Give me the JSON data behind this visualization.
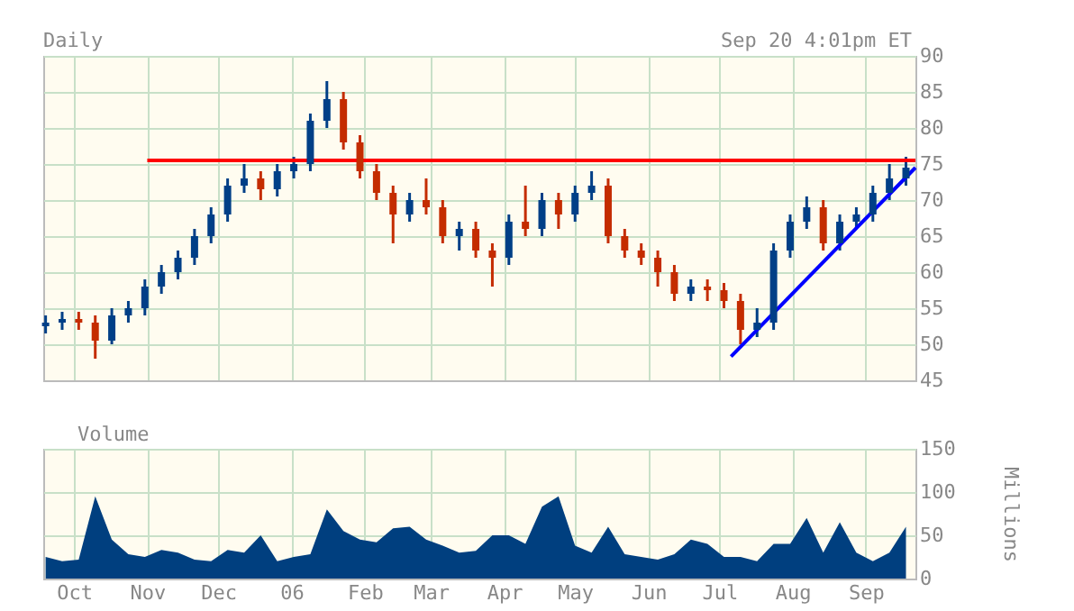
{
  "chart_data": [
    {
      "type": "candlestick",
      "title": "Daily",
      "annotations": [
        "Sep 20 4:01pm ET"
      ],
      "x": [
        "2005-09-19",
        "2005-09-26",
        "2005-10-03",
        "2005-10-10",
        "2005-10-17",
        "2005-10-24",
        "2005-10-31",
        "2005-11-07",
        "2005-11-14",
        "2005-11-21",
        "2005-11-28",
        "2005-12-05",
        "2005-12-12",
        "2005-12-19",
        "2005-12-26",
        "2006-01-02",
        "2006-01-09",
        "2006-01-16",
        "2006-01-23",
        "2006-01-30",
        "2006-02-06",
        "2006-02-13",
        "2006-02-20",
        "2006-02-27",
        "2006-03-06",
        "2006-03-13",
        "2006-03-20",
        "2006-03-27",
        "2006-04-03",
        "2006-04-10",
        "2006-04-17",
        "2006-04-24",
        "2006-05-01",
        "2006-05-08",
        "2006-05-15",
        "2006-05-22",
        "2006-05-29",
        "2006-06-05",
        "2006-06-12",
        "2006-06-19",
        "2006-06-26",
        "2006-07-03",
        "2006-07-10",
        "2006-07-17",
        "2006-07-24",
        "2006-07-31",
        "2006-08-07",
        "2006-08-14",
        "2006-08-21",
        "2006-08-28",
        "2006-09-04",
        "2006-09-11",
        "2006-09-18"
      ],
      "ohlc": [
        [
          52.5,
          54,
          51.5,
          53
        ],
        [
          53,
          54.5,
          52,
          53.5
        ],
        [
          53.5,
          54.5,
          52,
          53
        ],
        [
          53,
          54,
          48,
          50.5
        ],
        [
          50.5,
          55,
          50,
          54
        ],
        [
          54,
          56,
          53,
          55
        ],
        [
          55,
          59,
          54,
          58
        ],
        [
          58,
          61,
          57,
          60
        ],
        [
          60,
          63,
          59,
          62
        ],
        [
          62,
          66,
          61,
          65
        ],
        [
          65,
          69,
          64,
          68
        ],
        [
          68,
          73,
          67,
          72
        ],
        [
          72,
          75,
          71,
          73
        ],
        [
          73,
          74,
          70,
          71.5
        ],
        [
          71.5,
          75,
          70.5,
          74
        ],
        [
          74,
          76,
          73,
          75
        ],
        [
          75,
          82,
          74,
          81
        ],
        [
          81,
          86.5,
          80,
          84
        ],
        [
          84,
          85,
          77,
          78
        ],
        [
          78,
          79,
          73,
          74
        ],
        [
          74,
          75,
          70,
          71
        ],
        [
          71,
          72,
          64,
          68
        ],
        [
          68,
          71,
          67,
          70
        ],
        [
          70,
          73,
          68,
          69
        ],
        [
          69,
          70,
          64,
          65
        ],
        [
          65,
          67,
          63,
          66
        ],
        [
          66,
          67,
          62,
          63
        ],
        [
          63,
          64,
          58,
          62
        ],
        [
          62,
          68,
          61,
          67
        ],
        [
          67,
          72,
          65,
          66
        ],
        [
          66,
          71,
          65,
          70
        ],
        [
          70,
          71,
          66,
          68
        ],
        [
          68,
          72,
          67,
          71
        ],
        [
          71,
          74,
          70,
          72
        ],
        [
          72,
          73,
          64,
          65
        ],
        [
          65,
          66,
          62,
          63
        ],
        [
          63,
          64,
          61,
          62
        ],
        [
          62,
          63,
          58,
          60
        ],
        [
          60,
          61,
          56,
          57
        ],
        [
          57,
          59,
          56,
          58
        ],
        [
          58,
          59,
          56,
          57.5
        ],
        [
          57.5,
          58.5,
          55,
          56
        ],
        [
          56,
          57,
          50,
          52
        ],
        [
          52,
          55,
          51,
          53
        ],
        [
          53,
          64,
          52,
          63
        ],
        [
          63,
          68,
          62,
          67
        ],
        [
          67,
          70.5,
          66,
          69
        ],
        [
          69,
          70,
          63,
          64
        ],
        [
          64,
          68,
          63,
          67
        ],
        [
          67,
          69,
          66,
          68
        ],
        [
          68,
          72,
          67,
          71
        ],
        [
          71,
          75,
          70,
          73
        ],
        [
          73,
          76,
          72,
          74.5
        ]
      ],
      "colors": [
        "#003f87",
        "#003f87",
        "#c42c00",
        "#c42c00",
        "#003f87",
        "#003f87",
        "#003f87",
        "#003f87",
        "#003f87",
        "#003f87",
        "#003f87",
        "#003f87",
        "#003f87",
        "#c42c00",
        "#003f87",
        "#003f87",
        "#003f87",
        "#003f87",
        "#c42c00",
        "#c42c00",
        "#c42c00",
        "#c42c00",
        "#003f87",
        "#c42c00",
        "#c42c00",
        "#003f87",
        "#c42c00",
        "#c42c00",
        "#003f87",
        "#c42c00",
        "#003f87",
        "#c42c00",
        "#003f87",
        "#003f87",
        "#c42c00",
        "#c42c00",
        "#c42c00",
        "#c42c00",
        "#c42c00",
        "#003f87",
        "#c42c00",
        "#c42c00",
        "#c42c00",
        "#003f87",
        "#003f87",
        "#003f87",
        "#003f87",
        "#c42c00",
        "#003f87",
        "#003f87",
        "#003f87",
        "#003f87",
        "#003f87"
      ],
      "series": [
        {
          "type": "line",
          "color": "#ff0000",
          "x": [
            "2005-11-01",
            "2006-09-22"
          ],
          "values": [
            75.5,
            75.5
          ]
        },
        {
          "type": "line",
          "color": "#0000ff",
          "x": [
            "2006-07-06",
            "2006-09-22"
          ],
          "values": [
            48.3,
            74.5
          ]
        }
      ],
      "xlim": [
        "2005-09-18",
        "2006-09-22"
      ],
      "xticks": [
        {
          "value": "2005-10-01",
          "label": null
        },
        {
          "value": "2005-11-01",
          "label": null
        },
        {
          "value": "2005-12-01",
          "label": null
        },
        {
          "value": "2006-01-01",
          "label": null
        },
        {
          "value": "2006-02-01",
          "label": null
        },
        {
          "value": "2006-03-01",
          "label": null
        },
        {
          "value": "2006-04-01",
          "label": null
        },
        {
          "value": "2006-05-01",
          "label": null
        },
        {
          "value": "2006-06-01",
          "label": null
        },
        {
          "value": "2006-07-01",
          "label": null
        },
        {
          "value": "2006-08-01",
          "label": null
        },
        {
          "value": "2006-09-01",
          "label": null
        }
      ],
      "ylim": [
        45,
        90
      ],
      "yticks": [
        45,
        50,
        55,
        60,
        65,
        70,
        75,
        80,
        85,
        90
      ],
      "grid": true,
      "tick_labels": "y"
    },
    {
      "type": "area",
      "ylabel": "Millions",
      "legend": "top left",
      "x": [
        "2005-09-19",
        "2005-09-26",
        "2005-10-03",
        "2005-10-10",
        "2005-10-17",
        "2005-10-24",
        "2005-10-31",
        "2005-11-07",
        "2005-11-14",
        "2005-11-21",
        "2005-11-28",
        "2005-12-05",
        "2005-12-12",
        "2005-12-19",
        "2005-12-26",
        "2006-01-02",
        "2006-01-09",
        "2006-01-16",
        "2006-01-23",
        "2006-01-30",
        "2006-02-06",
        "2006-02-13",
        "2006-02-20",
        "2006-02-27",
        "2006-03-06",
        "2006-03-13",
        "2006-03-20",
        "2006-03-27",
        "2006-04-03",
        "2006-04-10",
        "2006-04-17",
        "2006-04-24",
        "2006-05-01",
        "2006-05-08",
        "2006-05-15",
        "2006-05-22",
        "2006-05-29",
        "2006-06-05",
        "2006-06-12",
        "2006-06-19",
        "2006-06-26",
        "2006-07-03",
        "2006-07-10",
        "2006-07-17",
        "2006-07-24",
        "2006-07-31",
        "2006-08-07",
        "2006-08-14",
        "2006-08-21",
        "2006-08-28",
        "2006-09-04",
        "2006-09-11",
        "2006-09-18"
      ],
      "series": [
        {
          "name": "Volume",
          "color": "#003f7f",
          "values": [
            25,
            20,
            22,
            95,
            45,
            28,
            25,
            33,
            30,
            22,
            20,
            33,
            30,
            50,
            20,
            25,
            28,
            80,
            55,
            45,
            42,
            58,
            60,
            45,
            38,
            30,
            32,
            50,
            50,
            40,
            83,
            95,
            38,
            30,
            60,
            28,
            25,
            22,
            28,
            45,
            40,
            25,
            25,
            20,
            40,
            40,
            70,
            30,
            65,
            30,
            20,
            30,
            60
          ]
        }
      ],
      "xlim": [
        "2005-09-18",
        "2006-09-22"
      ],
      "xticks": [
        {
          "value": "2005-10-01",
          "label": "Oct"
        },
        {
          "value": "2005-11-01",
          "label": "Nov"
        },
        {
          "value": "2005-12-01",
          "label": "Dec"
        },
        {
          "value": "2006-01-01",
          "label": "06"
        },
        {
          "value": "2006-02-01",
          "label": "Feb"
        },
        {
          "value": "2006-03-01",
          "label": "Mar"
        },
        {
          "value": "2006-04-01",
          "label": "Apr"
        },
        {
          "value": "2006-05-01",
          "label": "May"
        },
        {
          "value": "2006-06-01",
          "label": "Jun"
        },
        {
          "value": "2006-07-01",
          "label": "Jul"
        },
        {
          "value": "2006-08-01",
          "label": "Aug"
        },
        {
          "value": "2006-09-01",
          "label": "Sep"
        }
      ],
      "ylim": [
        0,
        150
      ],
      "yticks": [
        0,
        50,
        100,
        150
      ],
      "grid": true
    }
  ]
}
